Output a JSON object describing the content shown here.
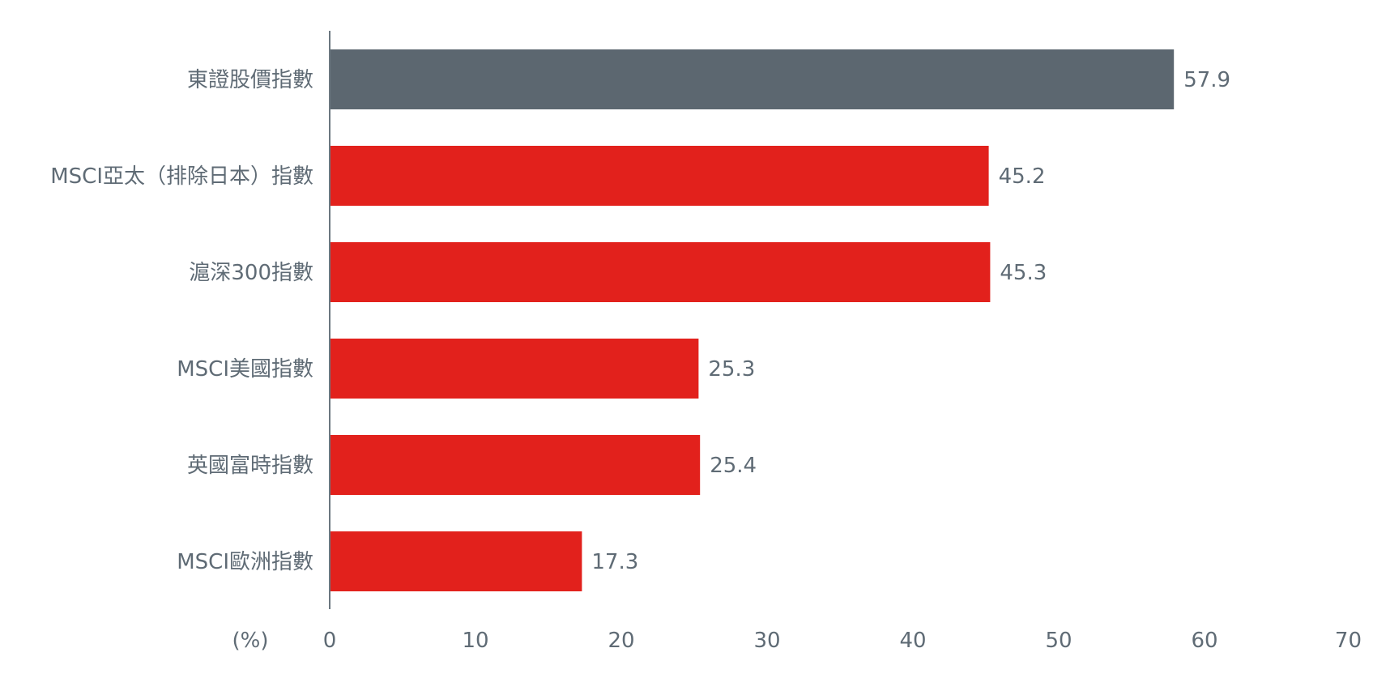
{
  "chart_data": {
    "type": "bar",
    "orientation": "horizontal",
    "categories": [
      "東證股價指數",
      "MSCI亞太（排除日本）指數",
      "滬深300指數",
      "MSCI美國指數",
      "英國富時指數",
      "MSCI歐洲指數"
    ],
    "values": [
      57.9,
      45.2,
      45.3,
      25.3,
      25.4,
      17.3
    ],
    "value_labels": [
      "57.9",
      "45.2",
      "45.3",
      "25.3",
      "25.4",
      "17.3"
    ],
    "bar_colors": [
      "#5c6770",
      "#e2211c",
      "#e2211c",
      "#e2211c",
      "#e2211c",
      "#e2211c"
    ],
    "title": "",
    "xlabel": "(%)",
    "ylabel": "",
    "xlim": [
      0,
      70
    ],
    "x_ticks": [
      0,
      10,
      20,
      30,
      40,
      50,
      60,
      70
    ],
    "x_tick_labels": [
      "0",
      "10",
      "20",
      "30",
      "40",
      "50",
      "60",
      "70"
    ],
    "grid": false,
    "legend": "none",
    "axis_color": "#5f6b75",
    "text_color": "#5f6b75"
  }
}
